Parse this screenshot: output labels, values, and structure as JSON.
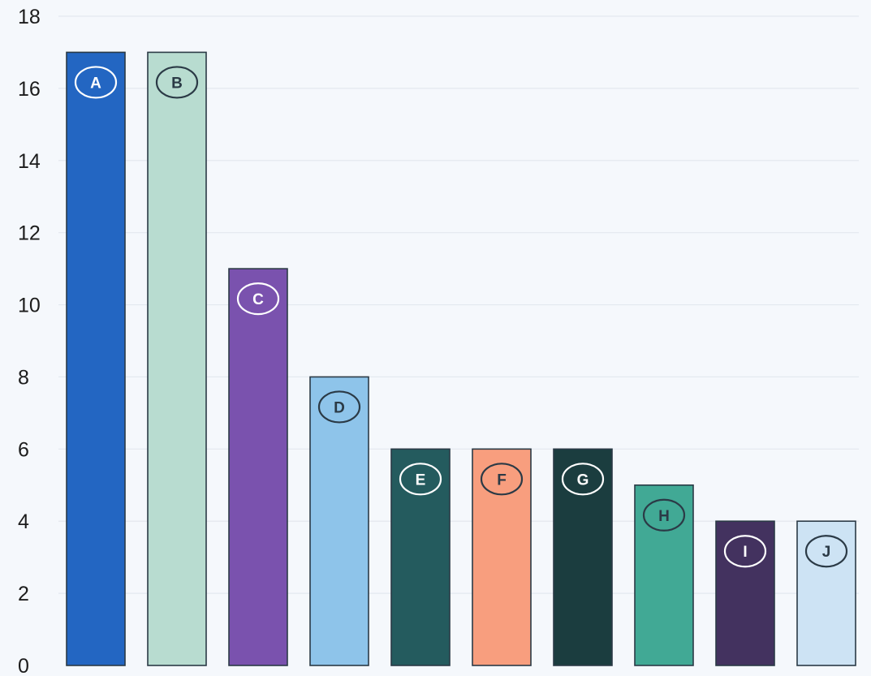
{
  "chart_data": {
    "type": "bar",
    "categories": [
      "A",
      "B",
      "C",
      "D",
      "E",
      "F",
      "G",
      "H",
      "I",
      "J"
    ],
    "values": [
      17,
      17,
      11,
      8,
      6,
      6,
      6,
      5,
      4,
      4
    ],
    "colors": [
      "#2366c2",
      "#b8dcd0",
      "#7a52ae",
      "#8ec4ea",
      "#245b5e",
      "#f89e7e",
      "#1b3d3f",
      "#41a995",
      "#43325f",
      "#cde3f4"
    ],
    "badge_text_colors": [
      "#ffffff",
      "#2b3a46",
      "#ffffff",
      "#2b3a46",
      "#ffffff",
      "#2b3a46",
      "#ffffff",
      "#2b3a46",
      "#ffffff",
      "#2b3a46"
    ],
    "ylim": [
      0,
      18
    ],
    "yticks": [
      "0",
      "2",
      "4",
      "6",
      "8",
      "10",
      "12",
      "14",
      "16",
      "18"
    ],
    "title": "",
    "xlabel": "",
    "ylabel": "",
    "grid": true,
    "legend": "none"
  }
}
